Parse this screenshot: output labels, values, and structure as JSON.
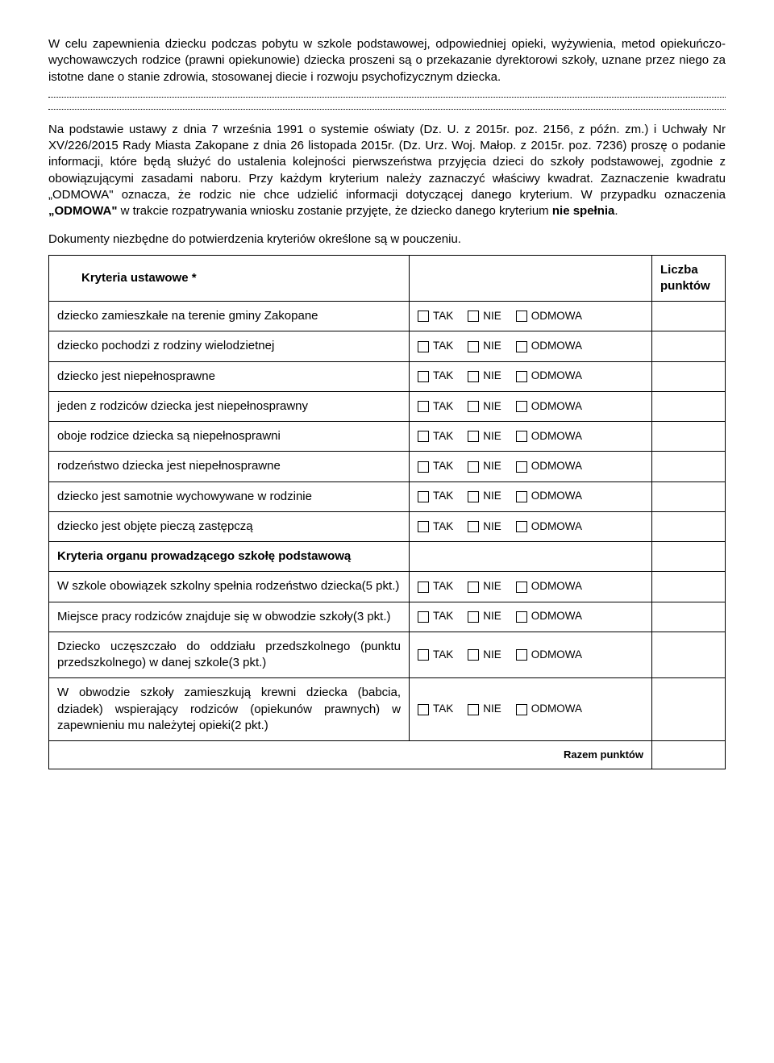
{
  "intro_para_1": "W celu zapewnienia dziecku podczas pobytu w szkole podstawowej, odpowiedniej opieki, wyżywienia, metod opiekuńczo-wychowawczych rodzice (prawni opiekunowie) dziecka proszeni są o przekazanie dyrektorowi szkoły, uznane przez niego za istotne dane o stanie zdrowia, stosowanej diecie i rozwoju psychofizycznym dziecka.",
  "main_para_prefix": "Na podstawie ustawy z dnia 7 września 1991 o systemie oświaty (Dz. U. z 2015r. poz. 2156, z późn. zm.) i Uchwały Nr XV/226/2015 Rady Miasta Zakopane z dnia 26 listopada 2015r. (Dz. Urz. Woj. Małop. z 2015r. poz. 7236) proszę o podanie informacji, które będą służyć do ustalenia kolejności pierwszeństwa przyjęcia dzieci do szkoły podstawowej, zgodnie z obowiązującymi zasadami naboru. Przy każdym kryterium należy zaznaczyć właściwy kwadrat. Zaznaczenie kwadratu „ODMOWA\" oznacza, że rodzic nie chce udzielić informacji dotyczącej danego kryterium. W przypadku oznaczenia ",
  "odmowa_bold": "„ODMOWA\"",
  "main_para_mid": " w trakcie rozpatrywania wniosku zostanie przyjęte, że dziecko danego kryterium ",
  "nie_spelnia_bold": "nie spełnia",
  "main_para_suffix": ".",
  "documents_line": "Dokumenty niezbędne do potwierdzenia kryteriów określone są w pouczeniu.",
  "header_criteria": "Kryteria ustawowe *",
  "header_points": "Liczba punktów",
  "option_tak": "TAK",
  "option_nie": "NIE",
  "option_odmowa": "ODMOWA",
  "section2_header": "Kryteria organu prowadzącego  szkołę podstawową",
  "rows_section1": [
    {
      "label": "dziecko zamieszkałe na terenie gminy Zakopane"
    },
    {
      "label": "dziecko pochodzi z rodziny wielodzietnej"
    },
    {
      "label": "dziecko jest niepełnosprawne"
    },
    {
      "label": "jeden z rodziców dziecka jest niepełnosprawny"
    },
    {
      "label": "oboje rodzice dziecka są niepełnosprawni"
    },
    {
      "label": "rodzeństwo dziecka jest niepełnosprawne"
    },
    {
      "label": "dziecko jest samotnie wychowywane w rodzinie"
    },
    {
      "label": "dziecko jest objęte pieczą zastępczą"
    }
  ],
  "rows_section2": [
    {
      "label": "W szkole obowiązek szkolny spełnia rodzeństwo dziecka(5 pkt.)"
    },
    {
      "label": "Miejsce pracy rodziców znajduje się w obwodzie szkoły(3 pkt.)"
    },
    {
      "label": "Dziecko uczęszczało do oddziału przedszkolnego (punktu przedszkolnego) w danej szkole(3 pkt.)"
    },
    {
      "label": "W obwodzie szkoły zamieszkują krewni dziecka (babcia, dziadek) wspierający rodziców (opiekunów prawnych) w zapewnieniu mu należytej opieki(2 pkt.)"
    }
  ],
  "total_label": "Razem punktów"
}
